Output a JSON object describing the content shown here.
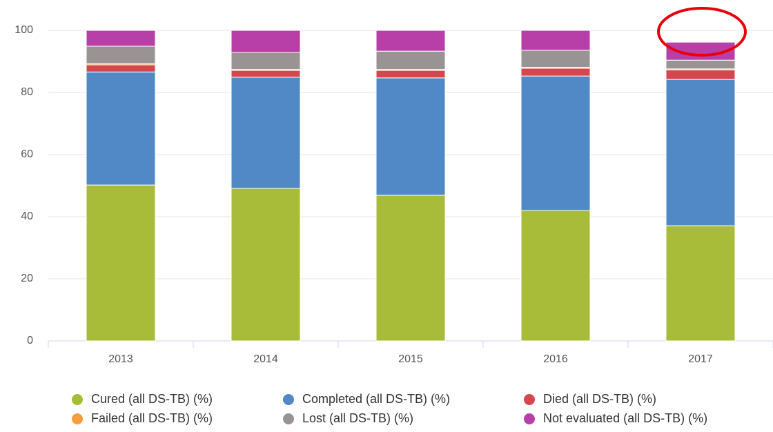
{
  "chart_data": {
    "type": "stacked_bar",
    "categories": [
      "2013",
      "2014",
      "2015",
      "2016",
      "2017"
    ],
    "series": [
      {
        "name": "Cured (all DS-TB) (%)",
        "color": "#a8bc3a",
        "values": [
          50.2,
          49.1,
          46.9,
          42.0,
          37.1
        ]
      },
      {
        "name": "Completed (all DS-TB) (%)",
        "color": "#5089c6",
        "values": [
          36.4,
          35.8,
          37.8,
          43.3,
          47.1
        ]
      },
      {
        "name": "Died (all DS-TB) (%)",
        "color": "#d4474f",
        "values": [
          2.3,
          2.2,
          2.4,
          2.5,
          3.1
        ]
      },
      {
        "name": "Failed (all DS-TB) (%)",
        "color": "#f79d3c",
        "values": [
          0.4,
          0.3,
          0.3,
          0.3,
          0.3
        ]
      },
      {
        "name": "Lost (all DS-TB) (%)",
        "color": "#999393",
        "values": [
          5.6,
          5.5,
          5.9,
          5.5,
          2.8
        ]
      },
      {
        "name": "Not evaluated (all DS-TB) (%)",
        "color": "#b83fa8",
        "values": [
          5.1,
          7.1,
          6.7,
          6.4,
          5.8
        ]
      }
    ],
    "ylim": [
      0,
      100
    ],
    "yticks": [
      0,
      20,
      40,
      60,
      80,
      100
    ],
    "grid": true
  }
}
